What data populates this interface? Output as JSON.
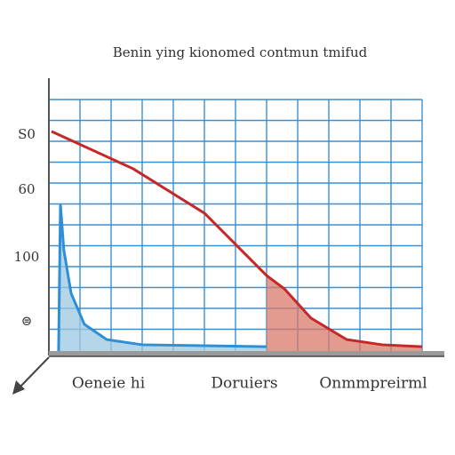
{
  "chart_data": {
    "type": "line",
    "title": "Benin ying kionomed contmun tmifud",
    "categories": [
      "Oeneie hi",
      "Doruiers",
      "Onmmpreirml"
    ],
    "y_labels": [
      "S0",
      "60",
      "100",
      "⊜"
    ],
    "xlim": [
      0,
      100
    ],
    "ylim": [
      0,
      100
    ],
    "grid": true,
    "series": [
      {
        "name": "red",
        "color": "#c62828",
        "fill": "#d9786a",
        "x": [
          0.7,
          22.6,
          41.7,
          58.3,
          63.1,
          70.2,
          79.8,
          89.3,
          100
        ],
        "values": [
          80.5,
          66.8,
          50.5,
          27.7,
          22.8,
          12.1,
          4.2,
          2.3,
          1.6
        ]
      },
      {
        "name": "blue",
        "color": "#2e8fd6",
        "fill": "#9cc8e0",
        "x": [
          2.6,
          3.1,
          4.0,
          5.95,
          9.5,
          15.5,
          25,
          58.3
        ],
        "values": [
          0,
          53.7,
          37.1,
          21.2,
          9.8,
          4.2,
          2.3,
          1.6
        ]
      }
    ]
  }
}
